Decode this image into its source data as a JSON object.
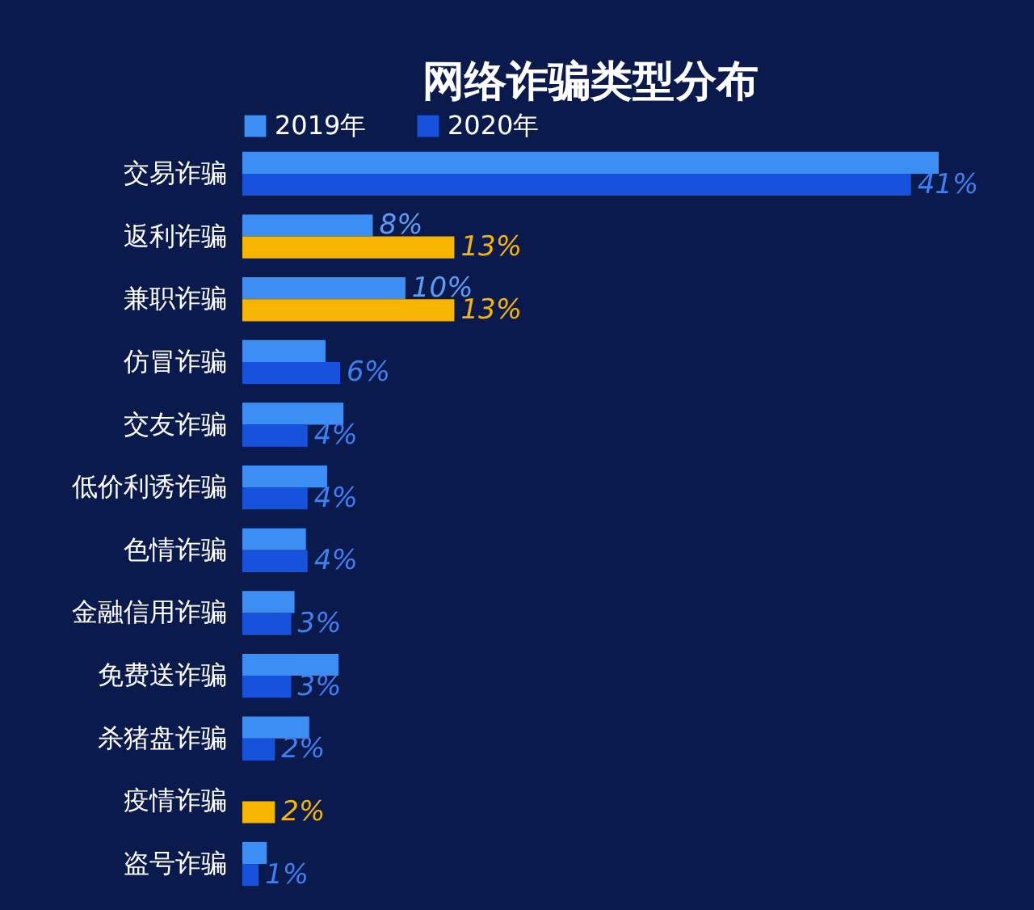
{
  "chart_data": {
    "type": "bar",
    "orientation": "horizontal",
    "title": "网络诈骗类型分布",
    "legend": "top",
    "tick_labels": "y",
    "categories": [
      "交易诈骗",
      "返利诈骗",
      "兼职诈骗",
      "仿冒诈骗",
      "交友诈骗",
      "低价利诱诈骗",
      "色情诈骗",
      "金融信用诈骗",
      "免费送诈骗",
      "杀猪盘诈骗",
      "疫情诈骗",
      "盗号诈骗"
    ],
    "series": [
      {
        "name": "2019年",
        "color": "#3d8ef2",
        "values": [
          42.7,
          8,
          10,
          5.1,
          6.2,
          5.2,
          3.9,
          3.2,
          5.9,
          4.1,
          null,
          1.5
        ],
        "value_labels": [
          null,
          "8%",
          "10%",
          null,
          null,
          null,
          null,
          null,
          null,
          null,
          null,
          null
        ]
      },
      {
        "name": "2020年",
        "color": "#1652dc",
        "colors": [
          "#1652dc",
          "#f7b500",
          "#f7b500",
          "#1652dc",
          "#1652dc",
          "#1652dc",
          "#1652dc",
          "#1652dc",
          "#1652dc",
          "#1652dc",
          "#f7b500",
          "#1652dc"
        ],
        "values": [
          41,
          13,
          13,
          6,
          4,
          4,
          4,
          3,
          3,
          2,
          2,
          1
        ],
        "value_labels": [
          "41%",
          "13%",
          "13%",
          "6%",
          "4%",
          "4%",
          "4%",
          "3%",
          "3%",
          "2%",
          "2%",
          "1%"
        ]
      }
    ]
  }
}
